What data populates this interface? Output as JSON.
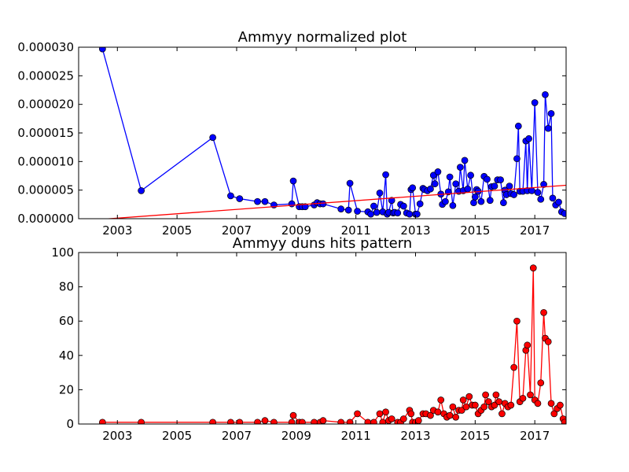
{
  "chart_data": [
    {
      "type": "line",
      "title": "Ammyy normalized plot",
      "xlabel": "",
      "ylabel": "",
      "xlim": [
        2001.7,
        2018.05
      ],
      "ylim": [
        0,
        3e-05
      ],
      "grid": false,
      "x_ticks": [
        2003,
        2005,
        2007,
        2009,
        2011,
        2013,
        2015,
        2017
      ],
      "x_tick_labels": [
        "2003",
        "2005",
        "2007",
        "2009",
        "2011",
        "2013",
        "2015",
        "2017"
      ],
      "y_ticks": [
        0,
        5e-06,
        1e-05,
        1.5e-05,
        2e-05,
        2.5e-05,
        3e-05
      ],
      "y_tick_labels": [
        "0.000000",
        "0.000005",
        "0.000010",
        "0.000015",
        "0.000020",
        "0.000025",
        "0.000030"
      ],
      "series": [
        {
          "color": "#0000ff",
          "marker": "circle",
          "x": [
            2002.5,
            2003.8,
            2006.2,
            2006.8,
            2007.1,
            2007.7,
            2007.95,
            2008.25,
            2008.85,
            2008.9,
            2009.1,
            2009.2,
            2009.3,
            2009.6,
            2009.7,
            2009.8,
            2009.9,
            2010.5,
            2010.75,
            2010.8,
            2011.05,
            2011.4,
            2011.5,
            2011.6,
            2011.7,
            2011.8,
            2011.9,
            2012.0,
            2012.05,
            2012.1,
            2012.2,
            2012.25,
            2012.3,
            2012.4,
            2012.5,
            2012.6,
            2012.7,
            2012.8,
            2012.85,
            2012.9,
            2013.0,
            2013.05,
            2013.15,
            2013.25,
            2013.3,
            2013.4,
            2013.5,
            2013.6,
            2013.65,
            2013.75,
            2013.85,
            2013.9,
            2014.0,
            2014.1,
            2014.15,
            2014.25,
            2014.35,
            2014.45,
            2014.5,
            2014.6,
            2014.65,
            2014.75,
            2014.85,
            2014.95,
            2015.0,
            2015.05,
            2015.1,
            2015.2,
            2015.3,
            2015.4,
            2015.5,
            2015.55,
            2015.65,
            2015.75,
            2015.85,
            2015.95,
            2016.0,
            2016.05,
            2016.15,
            2016.2,
            2016.3,
            2016.4,
            2016.45,
            2016.5,
            2016.6,
            2016.7,
            2016.75,
            2016.8,
            2016.9,
            2017.0,
            2017.1,
            2017.2,
            2017.3,
            2017.35,
            2017.45,
            2017.55,
            2017.6,
            2017.7,
            2017.8,
            2017.9,
            2018.0
          ],
          "y": [
            2.97e-05,
            4.9e-06,
            1.42e-05,
            4e-06,
            3.5e-06,
            3e-06,
            3e-06,
            2.4e-06,
            2.6e-06,
            6.6e-06,
            2.1e-06,
            2.1e-06,
            2.1e-06,
            2.4e-06,
            2.8e-06,
            2.6e-06,
            2.6e-06,
            1.7e-06,
            1.5e-06,
            6.2e-06,
            1.3e-06,
            1.2e-06,
            8e-07,
            2.2e-06,
            1.1e-06,
            4.5e-06,
            1.2e-06,
            7.7e-06,
            8e-07,
            1.1e-06,
            3.2e-06,
            1e-06,
            1.1e-06,
            1e-06,
            2.5e-06,
            2.2e-06,
            1e-06,
            8e-07,
            5.1e-06,
            5.4e-06,
            8e-07,
            8e-07,
            2.6e-06,
            5.3e-06,
            5.1e-06,
            4.9e-06,
            5.2e-06,
            7.6e-06,
            6.1e-06,
            8.2e-06,
            4.3e-06,
            2.5e-06,
            3e-06,
            4.7e-06,
            7.3e-06,
            2.3e-06,
            6.1e-06,
            4.8e-06,
            9e-06,
            4.9e-06,
            1.02e-05,
            5.2e-06,
            7.6e-06,
            2.8e-06,
            3.8e-06,
            5.1e-06,
            4.8e-06,
            3e-06,
            7.4e-06,
            6.9e-06,
            3.2e-06,
            5.6e-06,
            5.7e-06,
            6.8e-06,
            6.8e-06,
            2.8e-06,
            5e-06,
            4.2e-06,
            5.7e-06,
            4.4e-06,
            4.2e-06,
            1.05e-05,
            1.62e-05,
            4.8e-06,
            4.8e-06,
            1.36e-05,
            4.9e-06,
            1.4e-05,
            4.9e-06,
            2.03e-05,
            4.6e-06,
            3.4e-06,
            6e-06,
            2.17e-05,
            1.58e-05,
            1.84e-05,
            3.6e-06,
            2.4e-06,
            2.9e-06,
            1.2e-06,
            9e-07
          ]
        },
        {
          "color": "#ff0000",
          "marker": "none",
          "x": [
            2001.7,
            2018.05
          ],
          "y": [
            -4e-07,
            5.85e-06
          ]
        }
      ]
    },
    {
      "type": "line",
      "title": "Ammyy duns hits pattern",
      "xlabel": "",
      "ylabel": "",
      "xlim": [
        2001.7,
        2018.05
      ],
      "ylim": [
        0,
        100
      ],
      "grid": false,
      "x_ticks": [
        2003,
        2005,
        2007,
        2009,
        2011,
        2013,
        2015,
        2017
      ],
      "x_tick_labels": [
        "2003",
        "2005",
        "2007",
        "2009",
        "2011",
        "2013",
        "2015",
        "2017"
      ],
      "y_ticks": [
        0,
        20,
        40,
        60,
        80,
        100
      ],
      "y_tick_labels": [
        "0",
        "20",
        "40",
        "60",
        "80",
        "100"
      ],
      "series": [
        {
          "color": "#ff0000",
          "marker": "circle",
          "x": [
            2002.5,
            2003.8,
            2006.2,
            2006.8,
            2007.1,
            2007.7,
            2007.95,
            2008.25,
            2008.85,
            2008.9,
            2009.1,
            2009.2,
            2009.6,
            2009.8,
            2009.9,
            2010.5,
            2010.8,
            2011.05,
            2011.4,
            2011.6,
            2011.8,
            2011.9,
            2012.0,
            2012.1,
            2012.2,
            2012.4,
            2012.5,
            2012.6,
            2012.8,
            2012.85,
            2012.9,
            2013.0,
            2013.1,
            2013.25,
            2013.35,
            2013.5,
            2013.6,
            2013.75,
            2013.85,
            2013.95,
            2014.05,
            2014.15,
            2014.25,
            2014.35,
            2014.45,
            2014.55,
            2014.6,
            2014.7,
            2014.8,
            2014.9,
            2015.0,
            2015.1,
            2015.2,
            2015.3,
            2015.35,
            2015.45,
            2015.55,
            2015.65,
            2015.7,
            2015.8,
            2015.9,
            2016.0,
            2016.1,
            2016.2,
            2016.3,
            2016.4,
            2016.5,
            2016.6,
            2016.7,
            2016.75,
            2016.85,
            2016.95,
            2017.0,
            2017.1,
            2017.2,
            2017.3,
            2017.35,
            2017.45,
            2017.55,
            2017.65,
            2017.75,
            2017.85,
            2017.95,
            2018.0
          ],
          "y": [
            1,
            1,
            1,
            1,
            1,
            1,
            2,
            1,
            1,
            5,
            1,
            1,
            1,
            1,
            2,
            1,
            1,
            6,
            1,
            1,
            6,
            1,
            7,
            2,
            3,
            1,
            1,
            3,
            8,
            6,
            1,
            1,
            2,
            6,
            6,
            5,
            8,
            7,
            14,
            6,
            4,
            5,
            10,
            4,
            8,
            8,
            14,
            10,
            16,
            11,
            11,
            6,
            8,
            10,
            17,
            13,
            10,
            11,
            17,
            13,
            6,
            12,
            10,
            11,
            33,
            60,
            13,
            15,
            43,
            46,
            17,
            91,
            14,
            12,
            24,
            65,
            50,
            48,
            12,
            6,
            9,
            11,
            3,
            1
          ]
        }
      ]
    }
  ]
}
